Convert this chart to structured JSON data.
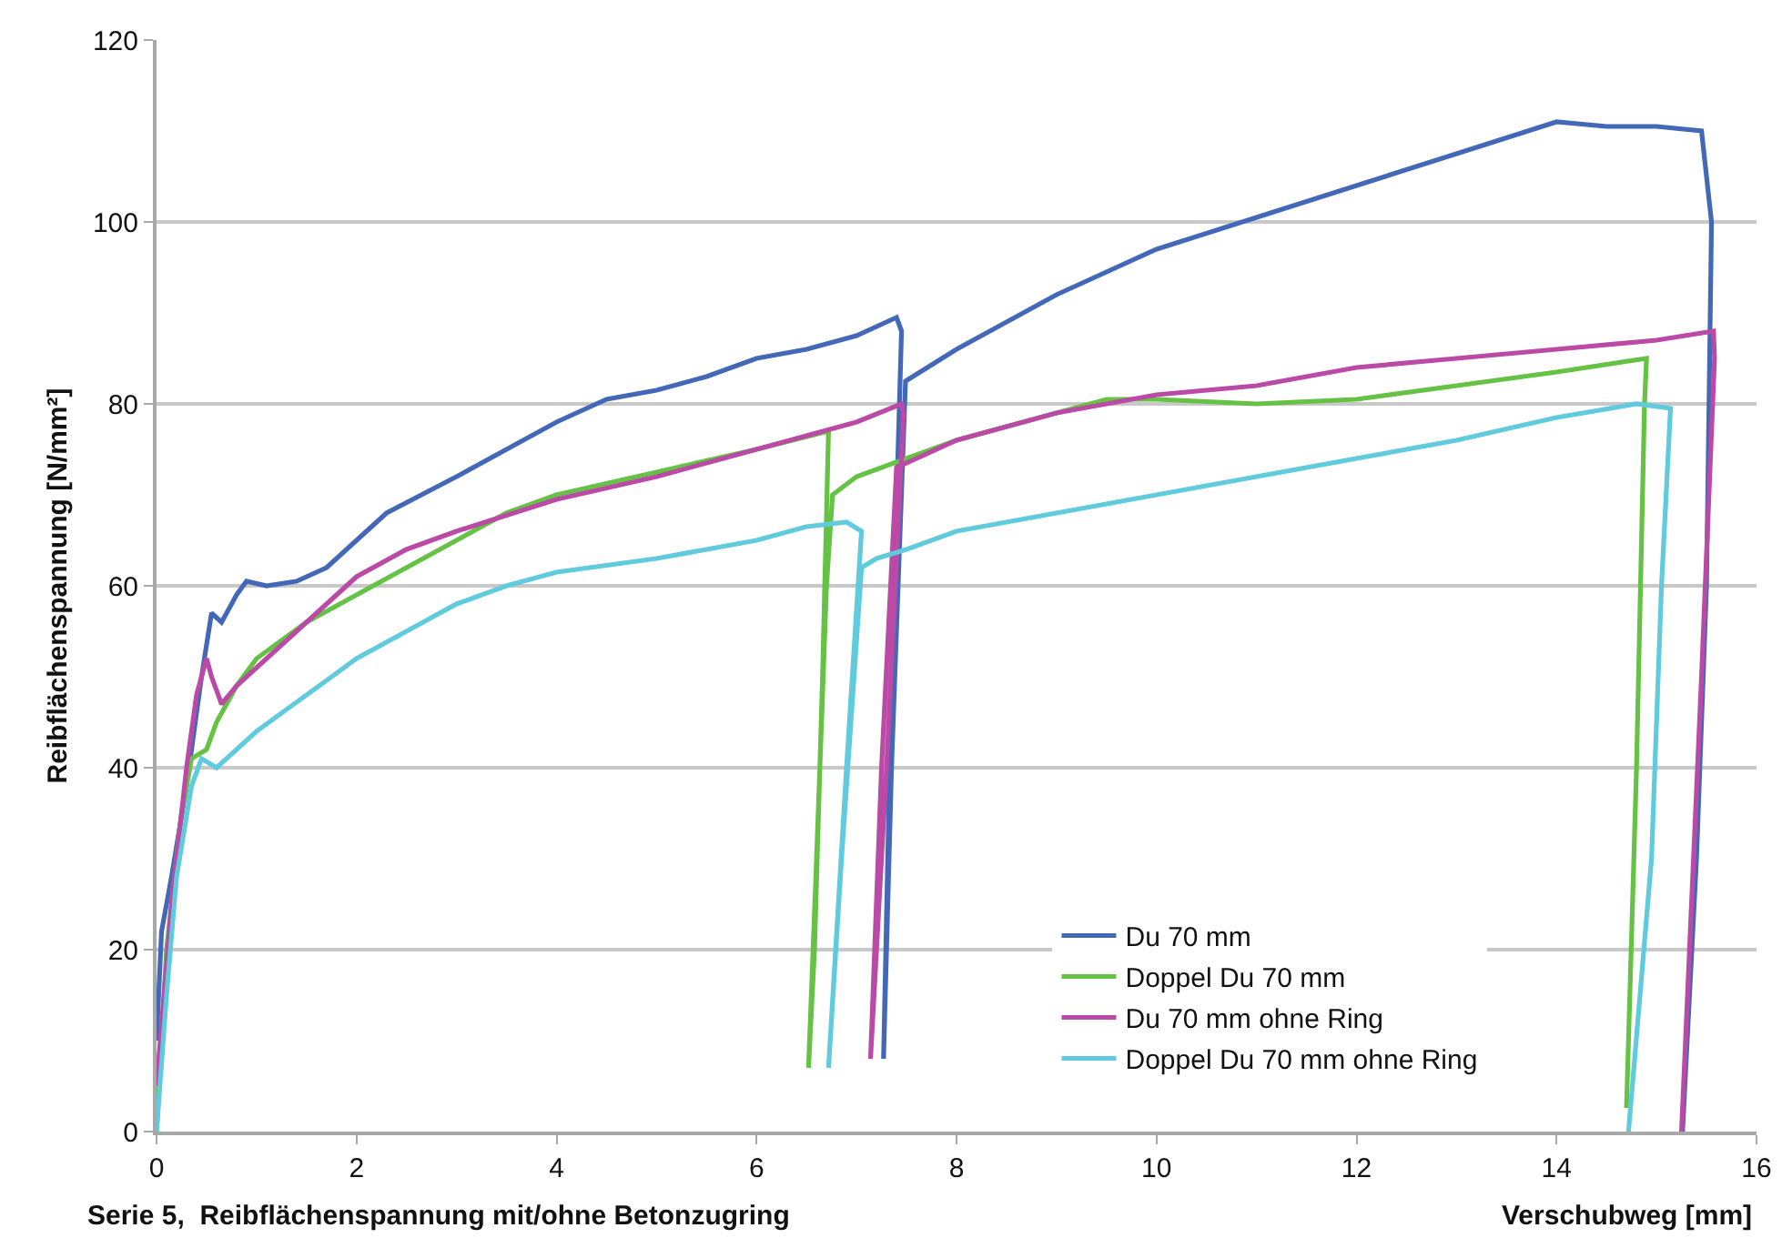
{
  "chart_data": {
    "type": "line",
    "xlabel": "Verschubweg [mm]",
    "ylabel": "Reibflächenspannung [N/mm²]",
    "annotations": [
      "Serie 5,  Reibflächenspannung mit/ohne Betonzugring"
    ],
    "xlim": [
      0,
      16
    ],
    "xticks": [
      0,
      2,
      4,
      6,
      8,
      10,
      12,
      14,
      16
    ],
    "ylim": [
      0,
      120
    ],
    "yticks": [
      0,
      20,
      40,
      60,
      80,
      100,
      120
    ],
    "grid": "y",
    "legend": "bottom right",
    "marker": "none",
    "line_style": "solid",
    "series": [
      {
        "name": "Du 70 mm",
        "color": "#4468b8",
        "x": [
          0,
          0.05,
          0.15,
          0.3,
          0.45,
          0.55,
          0.65,
          0.8,
          0.9,
          1.1,
          1.4,
          1.7,
          2,
          2.3,
          3,
          3.5,
          4,
          4.5,
          5,
          5.5,
          6,
          6.5,
          7,
          7.4,
          7.45,
          7.35,
          7.27,
          7.35,
          7.49,
          8,
          9,
          10,
          11,
          12,
          13,
          14,
          14.5,
          15,
          15.45,
          15.55,
          15.5,
          15.4,
          15.26
        ],
        "values": [
          10,
          22,
          28,
          38,
          50,
          57,
          56,
          59,
          60.5,
          60,
          60.5,
          62,
          65,
          68,
          72,
          75,
          78,
          80.5,
          81.5,
          83,
          85,
          86,
          87.5,
          89.5,
          88,
          50,
          8,
          40,
          82.5,
          86,
          92,
          97,
          100.5,
          104,
          107.5,
          111,
          110.5,
          110.5,
          110,
          100,
          60,
          30,
          0
        ]
      },
      {
        "name": "Doppel Du 70 mm",
        "color": "#66c244",
        "x": [
          0,
          0.1,
          0.25,
          0.35,
          0.5,
          0.6,
          0.8,
          1,
          1.5,
          2,
          2.5,
          3,
          3.5,
          4,
          5,
          6,
          6.72,
          6.66,
          6.58,
          6.52,
          6.6,
          6.7,
          6.76,
          7,
          7.5,
          8,
          9,
          9.5,
          10,
          11,
          12,
          13,
          14,
          14.9,
          14.88,
          14.8,
          14.7
        ],
        "values": [
          0,
          20,
          35,
          41,
          42,
          45,
          49,
          52,
          56,
          59,
          62,
          65,
          68,
          70,
          72.5,
          75,
          77,
          50,
          20,
          7,
          30,
          60,
          70,
          72,
          74,
          76,
          79,
          80.5,
          80.5,
          80,
          80.5,
          82,
          83.5,
          85,
          80,
          40,
          2.6
        ]
      },
      {
        "name": "Du 70 mm ohne Ring",
        "color": "#bb4aa6",
        "x": [
          0,
          0.15,
          0.3,
          0.4,
          0.5,
          0.55,
          0.65,
          0.8,
          1,
          1.5,
          2,
          2.5,
          3,
          4,
          5,
          6,
          7,
          7.45,
          7.47,
          7.3,
          7.14,
          7.25,
          7.4,
          7.6,
          8,
          9,
          10,
          11,
          12,
          13,
          14,
          15,
          15.57,
          15.58,
          15.45,
          15.25
        ],
        "values": [
          5,
          25,
          40,
          48,
          52,
          50,
          47,
          49,
          51,
          56,
          61,
          64,
          66,
          69.5,
          72,
          75,
          78,
          80,
          79,
          40,
          8,
          40,
          73,
          74,
          76,
          79,
          81,
          82,
          84,
          85,
          86,
          87,
          88,
          85,
          50,
          0
        ]
      },
      {
        "name": "Doppel Du 70 mm ohne Ring",
        "color": "#5fcbdd",
        "x": [
          0,
          0.1,
          0.2,
          0.35,
          0.45,
          0.6,
          0.8,
          1,
          1.5,
          2,
          2.5,
          3,
          3.5,
          4,
          5,
          6,
          6.5,
          6.9,
          7.05,
          6.9,
          6.72,
          6.85,
          7.05,
          7.2,
          7.5,
          8,
          9,
          10,
          11,
          12,
          13,
          14,
          14.8,
          15.14,
          15.05,
          14.95,
          14.72
        ],
        "values": [
          0,
          15,
          28,
          38,
          41,
          40,
          42,
          44,
          48,
          52,
          55,
          58,
          60,
          61.5,
          63,
          65,
          66.5,
          67,
          66,
          40,
          7,
          30,
          62,
          63,
          64,
          66,
          68,
          70,
          72,
          74,
          76,
          78.5,
          80,
          79.5,
          60,
          30,
          0
        ]
      }
    ]
  }
}
